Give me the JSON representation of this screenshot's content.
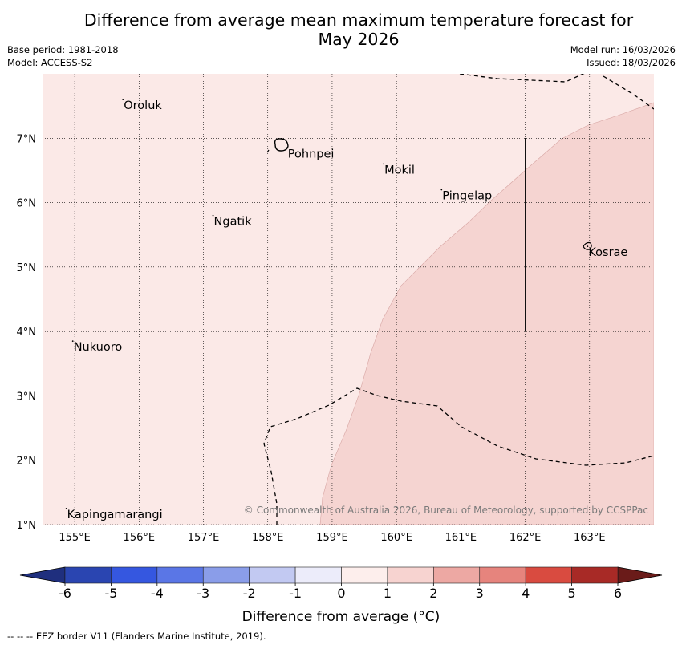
{
  "title": {
    "line1": "Difference from average mean maximum temperature forecast for",
    "line2": "May 2026"
  },
  "meta": {
    "base_period": "Base period: 1981-2018",
    "model": "Model: ACCESS-S2",
    "model_run": "Model run: 16/03/2026",
    "issued": "Issued: 18/03/2026"
  },
  "map": {
    "lon_range": [
      154.5,
      164.0
    ],
    "lat_range": [
      1.0,
      8.0
    ],
    "lon_ticks": [
      {
        "value": 155,
        "label": "155°E"
      },
      {
        "value": 156,
        "label": "156°E"
      },
      {
        "value": 157,
        "label": "157°E"
      },
      {
        "value": 158,
        "label": "158°E"
      },
      {
        "value": 159,
        "label": "159°E"
      },
      {
        "value": 160,
        "label": "160°E"
      },
      {
        "value": 161,
        "label": "161°E"
      },
      {
        "value": 162,
        "label": "162°E"
      },
      {
        "value": 163,
        "label": "163°E"
      }
    ],
    "lat_ticks": [
      {
        "value": 1,
        "label": "1°N"
      },
      {
        "value": 2,
        "label": "2°N"
      },
      {
        "value": 3,
        "label": "3°N"
      },
      {
        "value": 4,
        "label": "4°N"
      },
      {
        "value": 5,
        "label": "5°N"
      },
      {
        "value": 6,
        "label": "6°N"
      },
      {
        "value": 7,
        "label": "7°N"
      }
    ],
    "places": [
      {
        "name": "Oroluk",
        "lon": 155.75,
        "lat": 7.6
      },
      {
        "name": "Pohnpei",
        "lon": 158.3,
        "lat": 6.85
      },
      {
        "name": "Mokil",
        "lon": 159.8,
        "lat": 6.6
      },
      {
        "name": "Pingelap",
        "lon": 160.7,
        "lat": 6.2
      },
      {
        "name": "Ngatik",
        "lon": 157.15,
        "lat": 5.8
      },
      {
        "name": "Kosrae",
        "lon": 162.97,
        "lat": 5.32
      },
      {
        "name": "Nukuoro",
        "lon": 154.97,
        "lat": 3.85
      },
      {
        "name": "Kapingamarangi",
        "lon": 154.87,
        "lat": 1.25
      }
    ],
    "background_fill": {
      "range": "0 to 1",
      "color": "#fbe9e7"
    },
    "warm_region": {
      "range": "1 to 2",
      "color": "#f5d4d1"
    },
    "copyright": "© Commonwealth of Australia 2026, Bureau of Meteorology, supported by CCSPPac"
  },
  "colorbar": {
    "ticks": [
      "-6",
      "-5",
      "-4",
      "-3",
      "-2",
      "-1",
      "0",
      "1",
      "2",
      "3",
      "4",
      "5",
      "6"
    ],
    "colors": [
      "#2a45b1",
      "#3557e0",
      "#5a76e6",
      "#8a9de9",
      "#c2c9f2",
      "#ececfa",
      "#fdeeec",
      "#f7d3d0",
      "#eda8a3",
      "#e6847d",
      "#d94b40",
      "#a82a26"
    ],
    "under_color": "#1f2f7e",
    "over_color": "#6a1b19",
    "label": "Difference from average (°C)"
  },
  "footer": {
    "eez_legend": "--  --  -- EEZ border V11 (Flanders Marine Institute, 2019)."
  }
}
